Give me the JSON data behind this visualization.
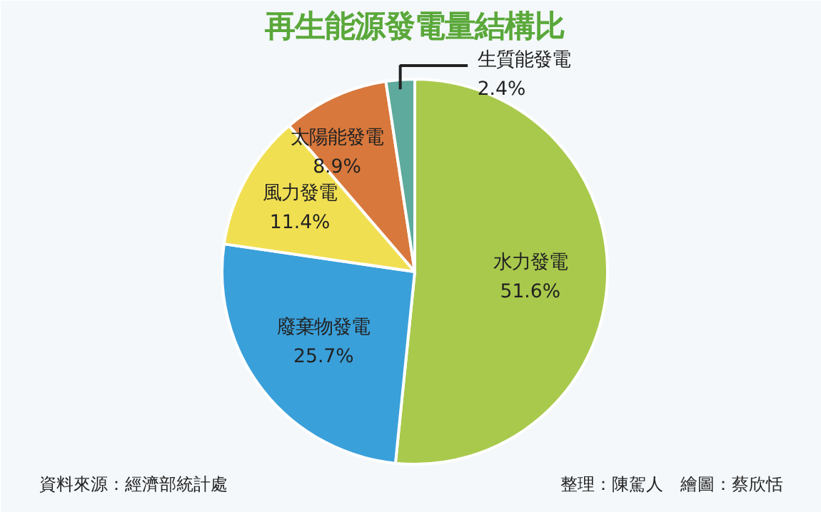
{
  "chart_data": {
    "type": "pie",
    "title": "再生能源發電量結構比",
    "categories": [
      "水力發電",
      "廢棄物發電",
      "風力發電",
      "太陽能發電",
      "生質能發電"
    ],
    "values": [
      51.6,
      25.7,
      11.4,
      8.9,
      2.4
    ],
    "value_labels": [
      "51.6%",
      "25.7%",
      "11.4%",
      "8.9%",
      "2.4%"
    ],
    "colors": [
      "#a9c94c",
      "#3aa0da",
      "#f1df52",
      "#d8783c",
      "#5eaa9c"
    ],
    "annotations": [
      "資料來源：經濟部統計處",
      "整理：陳駕人　繪圖：蔡欣恬"
    ]
  }
}
